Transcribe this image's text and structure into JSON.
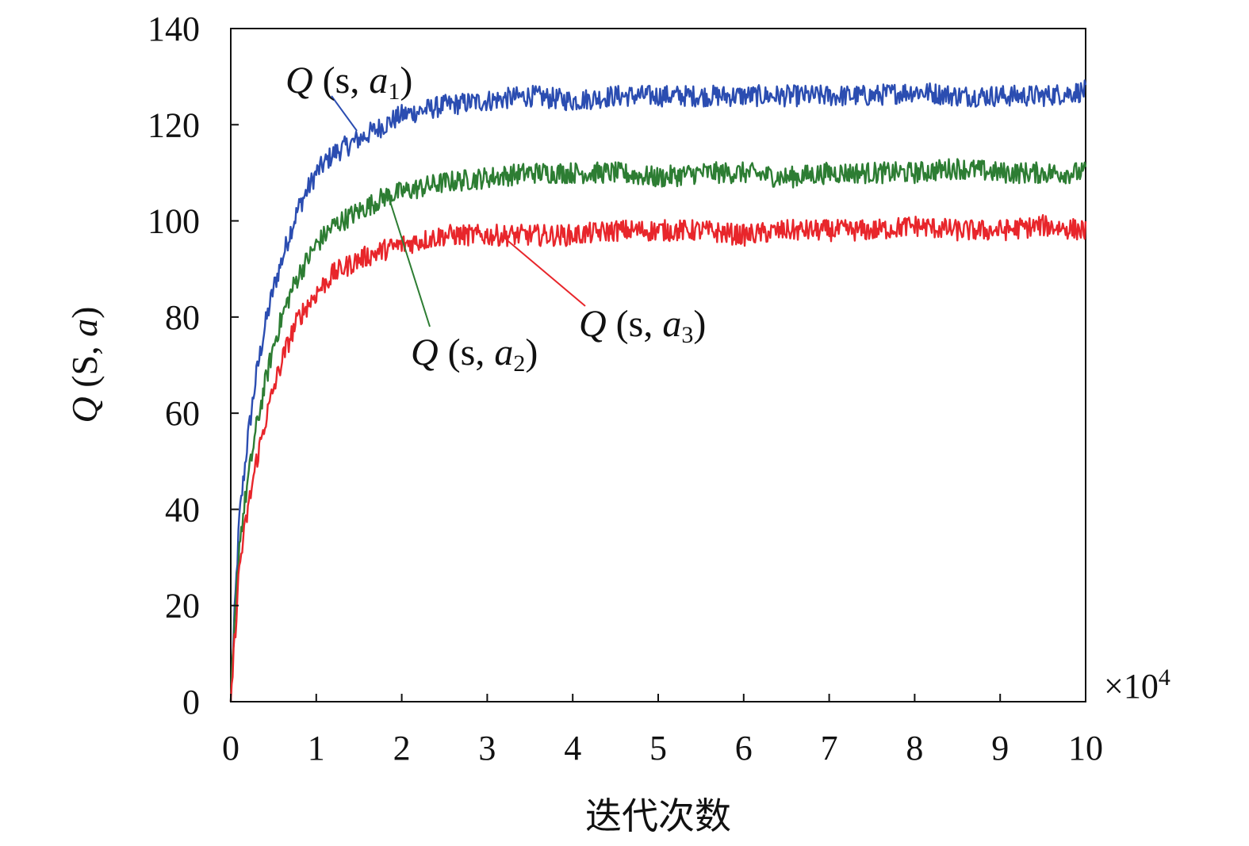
{
  "chart_data": {
    "type": "line",
    "xlabel": "迭代次数",
    "ylabel": {
      "q": "Q",
      "rest": " (S, ",
      "a": "a",
      "close": ")"
    },
    "x_multiplier": {
      "base": "×10",
      "exp": "4"
    },
    "xlim": [
      0,
      10
    ],
    "ylim": [
      0,
      140
    ],
    "x_ticks": [
      "0",
      "1",
      "2",
      "3",
      "4",
      "5",
      "6",
      "7",
      "8",
      "9",
      "10"
    ],
    "y_ticks": [
      "0",
      "20",
      "40",
      "60",
      "80",
      "100",
      "120",
      "140"
    ],
    "grid": false,
    "legend": "callout labels on curves",
    "x": [
      0,
      0.05,
      0.1,
      0.2,
      0.3,
      0.4,
      0.5,
      0.6,
      0.7,
      0.8,
      1.0,
      1.2,
      1.5,
      1.8,
      2.0,
      2.5,
      3.0,
      3.5,
      4.0,
      4.5,
      5.0,
      5.5,
      6.0,
      6.5,
      7.0,
      7.5,
      8.0,
      8.5,
      9.0,
      9.5,
      10.0
    ],
    "series": [
      {
        "name": {
          "q": "Q",
          "mid": " (s, ",
          "a": "a",
          "sub": "1",
          "close": ")"
        },
        "color": "#2b4db1",
        "values": [
          0,
          20,
          38,
          55,
          68,
          78,
          86,
          92,
          98,
          103,
          110,
          114,
          117,
          120,
          122,
          124,
          125,
          126,
          125,
          126,
          126,
          126,
          126,
          126,
          126,
          126,
          127,
          126,
          126,
          126,
          127
        ]
      },
      {
        "name": {
          "q": "Q",
          "mid": " (s, ",
          "a": "a",
          "sub": "2",
          "close": ")"
        },
        "color": "#2d7d33",
        "values": [
          0,
          17,
          33,
          46,
          57,
          66,
          74,
          80,
          85,
          89,
          95,
          99,
          102,
          105,
          106,
          108,
          109,
          110,
          110,
          110,
          109,
          110,
          110,
          109,
          110,
          110,
          110,
          111,
          110,
          110,
          110
        ]
      },
      {
        "name": {
          "q": "Q",
          "mid": " (s, ",
          "a": "a",
          "sub": "3",
          "close": ")"
        },
        "color": "#e8262b",
        "values": [
          0,
          14,
          28,
          40,
          50,
          58,
          65,
          71,
          76,
          80,
          85,
          89,
          92,
          94,
          95,
          97,
          97,
          97,
          97,
          98,
          98,
          98,
          97,
          98,
          98,
          98,
          99,
          98,
          98,
          99,
          98
        ]
      }
    ],
    "annotations": [
      {
        "series": 0,
        "anchor_x": 1.5,
        "anchor_y": 118
      },
      {
        "series": 1,
        "anchor_x": 1.8,
        "anchor_y": 105
      },
      {
        "series": 2,
        "anchor_x": 3.2,
        "anchor_y": 97
      }
    ]
  }
}
